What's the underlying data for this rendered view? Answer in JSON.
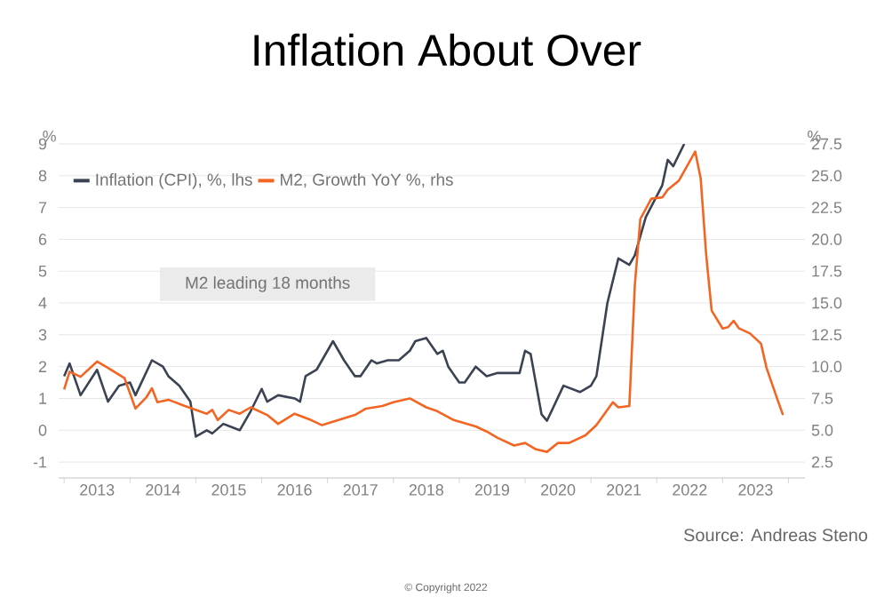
{
  "chart_data": {
    "type": "line",
    "title": "Inflation About Over",
    "ylabel": "%",
    "y2label": "%",
    "xlim": [
      "2012-12",
      "2024-04"
    ],
    "xticks": [
      {
        "value": "2013-01",
        "label": null
      },
      {
        "value": "2014-01",
        "label": null
      },
      {
        "value": "2015-01",
        "label": null
      },
      {
        "value": "2016-01",
        "label": null
      },
      {
        "value": "2017-01",
        "label": null
      },
      {
        "value": "2018-01",
        "label": null
      },
      {
        "value": "2019-01",
        "label": null
      },
      {
        "value": "2020-01",
        "label": null
      },
      {
        "value": "2021-01",
        "label": null
      },
      {
        "value": "2022-01",
        "label": null
      },
      {
        "value": "2023-01",
        "label": null
      },
      {
        "value": "2024-01",
        "label": null
      },
      {
        "value": "2013-07",
        "label": "2013"
      },
      {
        "value": "2014-07",
        "label": "2014"
      },
      {
        "value": "2015-07",
        "label": "2015"
      },
      {
        "value": "2016-07",
        "label": "2016"
      },
      {
        "value": "2017-07",
        "label": "2017"
      },
      {
        "value": "2018-07",
        "label": "2018"
      },
      {
        "value": "2019-07",
        "label": "2019"
      },
      {
        "value": "2020-07",
        "label": "2020"
      },
      {
        "value": "2021-07",
        "label": "2021"
      },
      {
        "value": "2022-07",
        "label": "2022"
      },
      {
        "value": "2023-07",
        "label": "2023"
      }
    ],
    "ylim": [
      -1.5,
      9
    ],
    "yticks": [
      -1,
      0,
      1,
      2,
      3,
      4,
      5,
      6,
      7,
      8,
      9
    ],
    "y2lim": [
      1.25,
      27.5
    ],
    "y2ticks": [
      {
        "value": 2.5,
        "label": "2.5"
      },
      {
        "value": 5,
        "label": "5.0"
      },
      {
        "value": 7.5,
        "label": "7.5"
      },
      {
        "value": 10,
        "label": "10.0"
      },
      {
        "value": 12.5,
        "label": "12.5"
      },
      {
        "value": 15,
        "label": "15.0"
      },
      {
        "value": 17.5,
        "label": "17.5"
      },
      {
        "value": 20,
        "label": "20.0"
      },
      {
        "value": 22.5,
        "label": "22.5"
      },
      {
        "value": 25,
        "label": "25.0"
      },
      {
        "value": 27.5,
        "label": "27.5"
      }
    ],
    "grid": "y",
    "legend": "top left",
    "line_style": "solid",
    "annotations": [
      "M2 leading 18 months",
      "Source: Andreas Steno",
      "© Copyright 2022"
    ],
    "series": [
      {
        "name": "Inflation (CPI), %, lhs",
        "color": "#3b4252",
        "x": [
          "2013-01",
          "2013-02",
          "2013-04",
          "2013-07",
          "2013-09",
          "2013-11",
          "2014-01",
          "2014-02",
          "2014-05",
          "2014-07",
          "2014-08",
          "2014-10",
          "2014-12",
          "2015-01",
          "2015-03",
          "2015-04",
          "2015-06",
          "2015-09",
          "2015-11",
          "2016-01",
          "2016-02",
          "2016-04",
          "2016-07",
          "2016-08",
          "2016-09",
          "2016-11",
          "2017-02",
          "2017-04",
          "2017-06",
          "2017-07",
          "2017-09",
          "2017-10",
          "2017-12",
          "2018-02",
          "2018-04",
          "2018-05",
          "2018-07",
          "2018-09",
          "2018-10",
          "2018-11",
          "2019-01",
          "2019-02",
          "2019-04",
          "2019-06",
          "2019-08",
          "2019-12",
          "2020-01",
          "2020-02",
          "2020-04",
          "2020-05",
          "2020-08",
          "2020-11",
          "2021-01",
          "2021-02",
          "2021-04",
          "2021-06",
          "2021-08",
          "2021-09",
          "2021-11",
          "2022-02",
          "2022-03",
          "2022-04",
          "2022-06"
        ],
        "values": [
          1.7,
          2.1,
          1.1,
          1.9,
          0.9,
          1.4,
          1.5,
          1.1,
          2.2,
          2.0,
          1.7,
          1.4,
          0.9,
          -0.2,
          0.0,
          -0.1,
          0.2,
          0.0,
          0.6,
          1.3,
          0.9,
          1.1,
          1.0,
          0.9,
          1.7,
          1.9,
          2.8,
          2.2,
          1.7,
          1.7,
          2.2,
          2.1,
          2.2,
          2.2,
          2.5,
          2.8,
          2.9,
          2.4,
          2.5,
          2.0,
          1.5,
          1.5,
          2.0,
          1.7,
          1.8,
          1.8,
          2.5,
          2.4,
          0.5,
          0.3,
          1.4,
          1.2,
          1.4,
          1.7,
          4.0,
          5.4,
          5.2,
          5.5,
          6.7,
          7.7,
          8.5,
          8.3,
          9.0
        ]
      },
      {
        "name": "M2, Growth YoY %, rhs",
        "color": "#f26522",
        "axis": "y2",
        "x": [
          "2013-01",
          "2013-02",
          "2013-04",
          "2013-07",
          "2013-09",
          "2013-12",
          "2014-02",
          "2014-04",
          "2014-05",
          "2014-06",
          "2014-08",
          "2014-11",
          "2015-03",
          "2015-04",
          "2015-05",
          "2015-07",
          "2015-09",
          "2015-11",
          "2016-02",
          "2016-04",
          "2016-07",
          "2016-10",
          "2016-12",
          "2017-03",
          "2017-06",
          "2017-08",
          "2017-11",
          "2018-01",
          "2018-04",
          "2018-07",
          "2018-09",
          "2018-12",
          "2019-04",
          "2019-06",
          "2019-08",
          "2019-11",
          "2020-01",
          "2020-03",
          "2020-05",
          "2020-07",
          "2020-09",
          "2020-12",
          "2021-02",
          "2021-05",
          "2021-06",
          "2021-08",
          "2021-09",
          "2021-10",
          "2021-12",
          "2022-02",
          "2022-03",
          "2022-05",
          "2022-08",
          "2022-09",
          "2022-10",
          "2022-11",
          "2023-01",
          "2023-02",
          "2023-03",
          "2023-04",
          "2023-06",
          "2023-08",
          "2023-09",
          "2023-11",
          "2023-12"
        ],
        "values": [
          8.2,
          9.6,
          9.2,
          10.4,
          9.9,
          9.1,
          6.7,
          7.6,
          8.3,
          7.2,
          7.4,
          6.9,
          6.3,
          6.6,
          5.8,
          6.6,
          6.3,
          6.8,
          6.2,
          5.5,
          6.3,
          5.8,
          5.4,
          5.8,
          6.2,
          6.7,
          6.9,
          7.2,
          7.5,
          6.8,
          6.5,
          5.8,
          5.3,
          4.9,
          4.4,
          3.8,
          4.0,
          3.5,
          3.3,
          4.0,
          4.0,
          4.6,
          5.4,
          7.2,
          6.8,
          6.9,
          16.4,
          21.6,
          23.2,
          23.3,
          23.9,
          24.6,
          26.9,
          24.8,
          18.8,
          14.4,
          13.0,
          13.1,
          13.6,
          13.0,
          12.6,
          11.8,
          9.9,
          7.4,
          6.2
        ]
      }
    ]
  }
}
